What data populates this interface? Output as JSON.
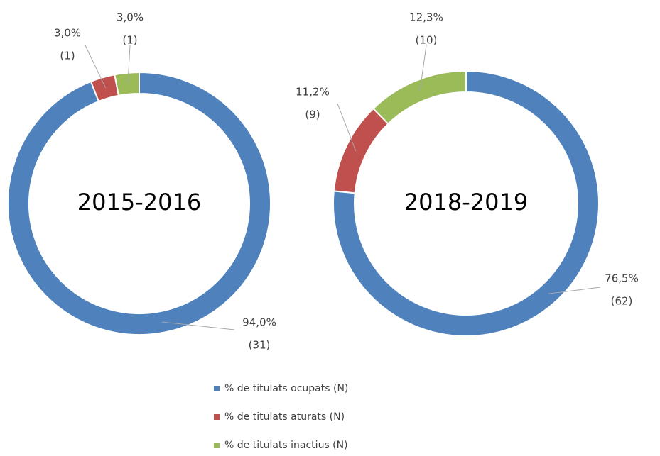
{
  "chart_data": [
    {
      "type": "pie",
      "title": "2015-2016",
      "values": [
        94.0,
        3.0,
        3.0
      ],
      "value_labels": [
        "94,0%",
        "3,0%",
        "3,0%"
      ],
      "count_labels": [
        "(31)",
        "(1)",
        "(1)"
      ]
    },
    {
      "type": "pie",
      "title": "2018-2019",
      "values": [
        76.5,
        11.2,
        12.3
      ],
      "value_labels": [
        "76,5%",
        "11,2%",
        "12,3%"
      ],
      "count_labels": [
        "(62)",
        "(9)",
        "(10)"
      ]
    }
  ],
  "legend": {
    "categories": [
      "% de titulats ocupats (N)",
      "% de titulats aturats (N)",
      "% de titulats inactius (N)"
    ],
    "colors": [
      "#4f81bd",
      "#c0504d",
      "#9bbb59"
    ]
  }
}
